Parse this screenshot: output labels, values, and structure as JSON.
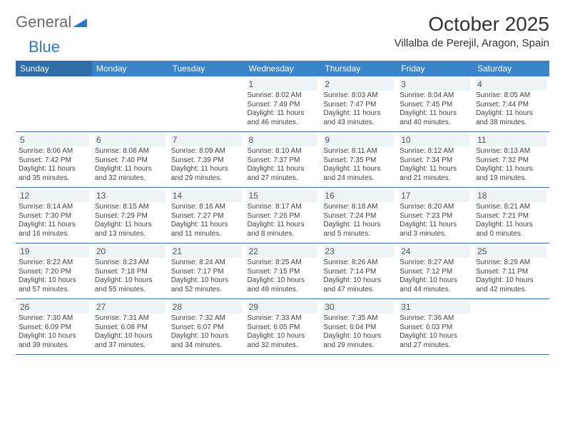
{
  "brand": {
    "part1": "General",
    "part2": "Blue"
  },
  "title": "October 2025",
  "location": "Villalba de Perejil, Aragon, Spain",
  "day_headers": [
    "Sunday",
    "Monday",
    "Tuesday",
    "Wednesday",
    "Thursday",
    "Friday",
    "Saturday"
  ],
  "colors": {
    "header_bg": "#3a85c9",
    "header_bg_first": "#2f6ea8",
    "header_text": "#ffffff",
    "border": "#3a6a9a",
    "daynum_bg": "#eef3f8",
    "text": "#444444",
    "brand_gray": "#6b6b6b",
    "brand_blue": "#2f78bf"
  },
  "weeks": [
    [
      {},
      {},
      {},
      {
        "num": "1",
        "sunrise": "Sunrise: 8:02 AM",
        "sunset": "Sunset: 7:49 PM",
        "dl1": "Daylight: 11 hours",
        "dl2": "and 46 minutes."
      },
      {
        "num": "2",
        "sunrise": "Sunrise: 8:03 AM",
        "sunset": "Sunset: 7:47 PM",
        "dl1": "Daylight: 11 hours",
        "dl2": "and 43 minutes."
      },
      {
        "num": "3",
        "sunrise": "Sunrise: 8:04 AM",
        "sunset": "Sunset: 7:45 PM",
        "dl1": "Daylight: 11 hours",
        "dl2": "and 40 minutes."
      },
      {
        "num": "4",
        "sunrise": "Sunrise: 8:05 AM",
        "sunset": "Sunset: 7:44 PM",
        "dl1": "Daylight: 11 hours",
        "dl2": "and 38 minutes."
      }
    ],
    [
      {
        "num": "5",
        "sunrise": "Sunrise: 8:06 AM",
        "sunset": "Sunset: 7:42 PM",
        "dl1": "Daylight: 11 hours",
        "dl2": "and 35 minutes."
      },
      {
        "num": "6",
        "sunrise": "Sunrise: 8:08 AM",
        "sunset": "Sunset: 7:40 PM",
        "dl1": "Daylight: 11 hours",
        "dl2": "and 32 minutes."
      },
      {
        "num": "7",
        "sunrise": "Sunrise: 8:09 AM",
        "sunset": "Sunset: 7:39 PM",
        "dl1": "Daylight: 11 hours",
        "dl2": "and 29 minutes."
      },
      {
        "num": "8",
        "sunrise": "Sunrise: 8:10 AM",
        "sunset": "Sunset: 7:37 PM",
        "dl1": "Daylight: 11 hours",
        "dl2": "and 27 minutes."
      },
      {
        "num": "9",
        "sunrise": "Sunrise: 8:11 AM",
        "sunset": "Sunset: 7:35 PM",
        "dl1": "Daylight: 11 hours",
        "dl2": "and 24 minutes."
      },
      {
        "num": "10",
        "sunrise": "Sunrise: 8:12 AM",
        "sunset": "Sunset: 7:34 PM",
        "dl1": "Daylight: 11 hours",
        "dl2": "and 21 minutes."
      },
      {
        "num": "11",
        "sunrise": "Sunrise: 8:13 AM",
        "sunset": "Sunset: 7:32 PM",
        "dl1": "Daylight: 11 hours",
        "dl2": "and 19 minutes."
      }
    ],
    [
      {
        "num": "12",
        "sunrise": "Sunrise: 8:14 AM",
        "sunset": "Sunset: 7:30 PM",
        "dl1": "Daylight: 11 hours",
        "dl2": "and 16 minutes."
      },
      {
        "num": "13",
        "sunrise": "Sunrise: 8:15 AM",
        "sunset": "Sunset: 7:29 PM",
        "dl1": "Daylight: 11 hours",
        "dl2": "and 13 minutes."
      },
      {
        "num": "14",
        "sunrise": "Sunrise: 8:16 AM",
        "sunset": "Sunset: 7:27 PM",
        "dl1": "Daylight: 11 hours",
        "dl2": "and 11 minutes."
      },
      {
        "num": "15",
        "sunrise": "Sunrise: 8:17 AM",
        "sunset": "Sunset: 7:26 PM",
        "dl1": "Daylight: 11 hours",
        "dl2": "and 8 minutes."
      },
      {
        "num": "16",
        "sunrise": "Sunrise: 8:18 AM",
        "sunset": "Sunset: 7:24 PM",
        "dl1": "Daylight: 11 hours",
        "dl2": "and 5 minutes."
      },
      {
        "num": "17",
        "sunrise": "Sunrise: 8:20 AM",
        "sunset": "Sunset: 7:23 PM",
        "dl1": "Daylight: 11 hours",
        "dl2": "and 3 minutes."
      },
      {
        "num": "18",
        "sunrise": "Sunrise: 8:21 AM",
        "sunset": "Sunset: 7:21 PM",
        "dl1": "Daylight: 11 hours",
        "dl2": "and 0 minutes."
      }
    ],
    [
      {
        "num": "19",
        "sunrise": "Sunrise: 8:22 AM",
        "sunset": "Sunset: 7:20 PM",
        "dl1": "Daylight: 10 hours",
        "dl2": "and 57 minutes."
      },
      {
        "num": "20",
        "sunrise": "Sunrise: 8:23 AM",
        "sunset": "Sunset: 7:18 PM",
        "dl1": "Daylight: 10 hours",
        "dl2": "and 55 minutes."
      },
      {
        "num": "21",
        "sunrise": "Sunrise: 8:24 AM",
        "sunset": "Sunset: 7:17 PM",
        "dl1": "Daylight: 10 hours",
        "dl2": "and 52 minutes."
      },
      {
        "num": "22",
        "sunrise": "Sunrise: 8:25 AM",
        "sunset": "Sunset: 7:15 PM",
        "dl1": "Daylight: 10 hours",
        "dl2": "and 49 minutes."
      },
      {
        "num": "23",
        "sunrise": "Sunrise: 8:26 AM",
        "sunset": "Sunset: 7:14 PM",
        "dl1": "Daylight: 10 hours",
        "dl2": "and 47 minutes."
      },
      {
        "num": "24",
        "sunrise": "Sunrise: 8:27 AM",
        "sunset": "Sunset: 7:12 PM",
        "dl1": "Daylight: 10 hours",
        "dl2": "and 44 minutes."
      },
      {
        "num": "25",
        "sunrise": "Sunrise: 8:29 AM",
        "sunset": "Sunset: 7:11 PM",
        "dl1": "Daylight: 10 hours",
        "dl2": "and 42 minutes."
      }
    ],
    [
      {
        "num": "26",
        "sunrise": "Sunrise: 7:30 AM",
        "sunset": "Sunset: 6:09 PM",
        "dl1": "Daylight: 10 hours",
        "dl2": "and 39 minutes."
      },
      {
        "num": "27",
        "sunrise": "Sunrise: 7:31 AM",
        "sunset": "Sunset: 6:08 PM",
        "dl1": "Daylight: 10 hours",
        "dl2": "and 37 minutes."
      },
      {
        "num": "28",
        "sunrise": "Sunrise: 7:32 AM",
        "sunset": "Sunset: 6:07 PM",
        "dl1": "Daylight: 10 hours",
        "dl2": "and 34 minutes."
      },
      {
        "num": "29",
        "sunrise": "Sunrise: 7:33 AM",
        "sunset": "Sunset: 6:05 PM",
        "dl1": "Daylight: 10 hours",
        "dl2": "and 32 minutes."
      },
      {
        "num": "30",
        "sunrise": "Sunrise: 7:35 AM",
        "sunset": "Sunset: 6:04 PM",
        "dl1": "Daylight: 10 hours",
        "dl2": "and 29 minutes."
      },
      {
        "num": "31",
        "sunrise": "Sunrise: 7:36 AM",
        "sunset": "Sunset: 6:03 PM",
        "dl1": "Daylight: 10 hours",
        "dl2": "and 27 minutes."
      },
      {}
    ]
  ]
}
